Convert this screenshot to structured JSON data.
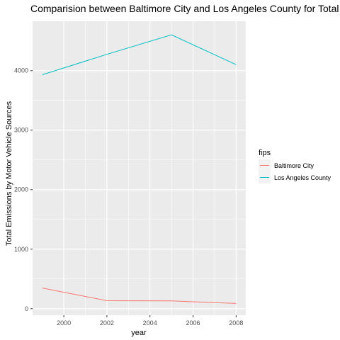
{
  "chart_data": {
    "type": "line",
    "title": "Comparision between Baltimore City and Los Angeles County for Total Emi",
    "xlabel": "year",
    "ylabel": "Total Emissions by Motor Vehicle Sources",
    "x": [
      1999,
      2002,
      2005,
      2008
    ],
    "xticks": [
      "2000",
      "2002",
      "2004",
      "2006",
      "2008"
    ],
    "yticks": [
      "0",
      "1000",
      "2000",
      "3000",
      "4000"
    ],
    "xlim": [
      1998.55,
      2008.45
    ],
    "ylim": [
      -110,
      4830
    ],
    "grid": true,
    "legend_title": "fips",
    "legend_position": "right",
    "series": [
      {
        "name": "Baltimore City",
        "color": "#F8766D",
        "values": [
          346.82,
          134.31,
          130.43,
          88.28
        ]
      },
      {
        "name": "Los Angeles County",
        "color": "#00BFC4",
        "values": [
          3931.12,
          4274.03,
          4601.41,
          4101.32
        ]
      }
    ],
    "panel_background": "#EBEBEB",
    "grid_color": "#FFFFFF"
  }
}
